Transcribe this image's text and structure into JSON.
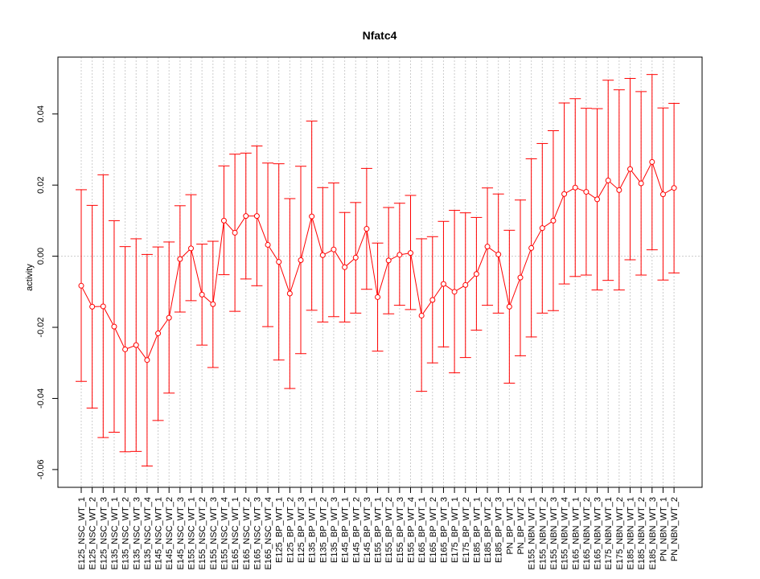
{
  "chart_data": {
    "type": "line",
    "title": "Nfatc4",
    "xlabel": "",
    "ylabel": "activity",
    "ylim": [
      -0.065,
      0.056
    ],
    "yticks": [
      -0.06,
      -0.04,
      -0.02,
      0.0,
      0.02,
      0.04
    ],
    "ytick_labels": [
      "-0.06",
      "-0.04",
      "-0.02",
      "0.00",
      "0.02",
      "0.04"
    ],
    "grid": true,
    "reference_line": 0.0,
    "colors": {
      "series": "#ff0000",
      "errorbar": "#ff0000",
      "grid": "#cccccc",
      "axis": "#000000"
    },
    "categories": [
      "E125_NSC_WT_1",
      "E125_NSC_WT_2",
      "E125_NSC_WT_3",
      "E135_NSC_WT_1",
      "E135_NSC_WT_2",
      "E135_NSC_WT_3",
      "E135_NSC_WT_4",
      "E145_NSC_WT_1",
      "E145_NSC_WT_2",
      "E145_NSC_WT_3",
      "E155_NSC_WT_1",
      "E155_NSC_WT_2",
      "E155_NSC_WT_3",
      "E155_NSC_WT_4",
      "E165_NSC_WT_1",
      "E165_NSC_WT_2",
      "E165_NSC_WT_3",
      "E165_NSC_WT_4",
      "E125_BP_WT_1",
      "E125_BP_WT_2",
      "E125_BP_WT_3",
      "E135_BP_WT_1",
      "E135_BP_WT_2",
      "E135_BP_WT_3",
      "E145_BP_WT_1",
      "E145_BP_WT_2",
      "E145_BP_WT_3",
      "E155_BP_WT_1",
      "E155_BP_WT_2",
      "E155_BP_WT_3",
      "E155_BP_WT_4",
      "E165_BP_WT_1",
      "E165_BP_WT_2",
      "E165_BP_WT_3",
      "E175_BP_WT_1",
      "E175_BP_WT_2",
      "E185_BP_WT_1",
      "E185_BP_WT_2",
      "E185_BP_WT_3",
      "PN_BP_WT_1",
      "PN_BP_WT_2",
      "E155_NBN_WT_1",
      "E155_NBN_WT_2",
      "E155_NBN_WT_3",
      "E155_NBN_WT_4",
      "E165_NBN_WT_1",
      "E165_NBN_WT_2",
      "E165_NBN_WT_3",
      "E175_NBN_WT_1",
      "E175_NBN_WT_2",
      "E185_NBN_WT_1",
      "E185_NBN_WT_2",
      "E185_NBN_WT_3",
      "PN_NBN_WT_1",
      "PN_NBN_WT_2"
    ],
    "values": [
      -0.0083,
      -0.0142,
      -0.0141,
      -0.0198,
      -0.0262,
      -0.025,
      -0.0292,
      -0.0217,
      -0.0173,
      -0.0008,
      0.0022,
      -0.0108,
      -0.0135,
      0.01,
      0.0066,
      0.0113,
      0.0113,
      0.0032,
      -0.0016,
      -0.0105,
      -0.0011,
      0.0112,
      0.0003,
      0.0019,
      -0.0031,
      -0.0004,
      0.0077,
      -0.0115,
      -0.0012,
      0.0004,
      0.0009,
      -0.0167,
      -0.0123,
      -0.0078,
      -0.01,
      -0.0081,
      -0.005,
      0.0027,
      0.0005,
      -0.0142,
      -0.006,
      0.0023,
      0.0079,
      0.01,
      0.0175,
      0.0193,
      0.0181,
      0.016,
      0.0213,
      0.0186,
      0.0245,
      0.0205,
      0.0265,
      0.0174,
      0.0192
    ],
    "lower": [
      -0.0352,
      -0.0427,
      -0.051,
      -0.0495,
      -0.055,
      -0.0549,
      -0.059,
      -0.0462,
      -0.0385,
      -0.0157,
      -0.0125,
      -0.025,
      -0.0313,
      -0.0052,
      -0.0155,
      -0.0064,
      -0.0083,
      -0.0198,
      -0.0292,
      -0.0372,
      -0.0274,
      -0.0152,
      -0.0185,
      -0.017,
      -0.0185,
      -0.016,
      -0.0093,
      -0.0267,
      -0.0162,
      -0.0138,
      -0.015,
      -0.038,
      -0.03,
      -0.0255,
      -0.0328,
      -0.0285,
      -0.0208,
      -0.0138,
      -0.016,
      -0.0357,
      -0.028,
      -0.0227,
      -0.016,
      -0.0153,
      -0.0078,
      -0.0057,
      -0.0053,
      -0.0095,
      -0.0068,
      -0.0095,
      -0.001,
      -0.0053,
      0.0018,
      -0.0067,
      -0.0047
    ],
    "upper": [
      0.0187,
      0.0143,
      0.0229,
      0.01,
      0.0027,
      0.0049,
      0.0005,
      0.0026,
      0.004,
      0.0142,
      0.0173,
      0.0034,
      0.0042,
      0.0254,
      0.0287,
      0.029,
      0.031,
      0.0262,
      0.026,
      0.0162,
      0.0253,
      0.038,
      0.0193,
      0.0206,
      0.0123,
      0.0151,
      0.0247,
      0.0037,
      0.0137,
      0.0149,
      0.0171,
      0.0049,
      0.0055,
      0.0098,
      0.0129,
      0.0122,
      0.0109,
      0.0192,
      0.0175,
      0.0073,
      0.0158,
      0.0274,
      0.0317,
      0.0353,
      0.0431,
      0.0443,
      0.0416,
      0.0415,
      0.0495,
      0.0468,
      0.05,
      0.0463,
      0.0511,
      0.0417,
      0.043
    ]
  }
}
